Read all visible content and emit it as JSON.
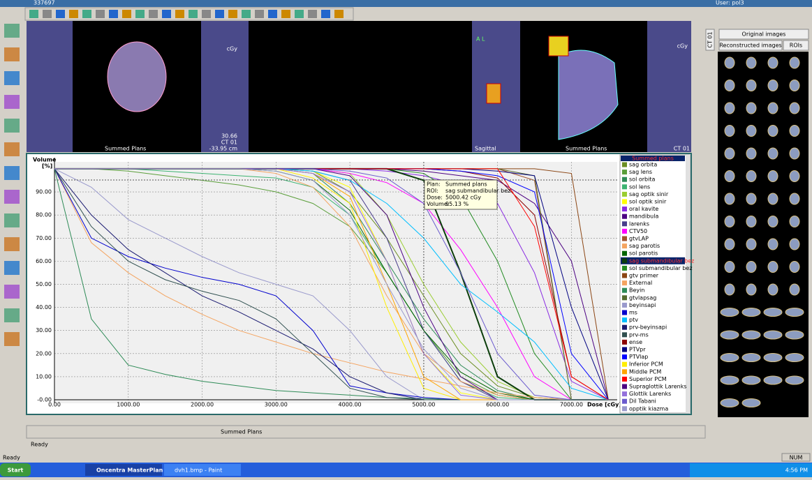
{
  "ui": {
    "top_left": "337697",
    "user": "User: pol3",
    "axial": {
      "footer": "Summed Plans",
      "ct": "CT 01",
      "pos": "-33.95 cm",
      "slice": "30.66",
      "unit": "cGy"
    },
    "sagittal": {
      "name": "Sagittal",
      "footer": "Summed Plans",
      "ct": "CT 01",
      "unit": "cGy",
      "orient": "A L"
    },
    "tabs": {
      "ct": "CT 01",
      "original": "Original images",
      "reconstructed": "Reconstructed images",
      "rois": "ROIs"
    },
    "bottom_plan": "Summed Plans",
    "status1": "Ready",
    "status2": "Ready",
    "num": "NUM",
    "taskbar": {
      "start": "Start",
      "app1": "Oncentra MasterPlan ...",
      "app2": "dvh1.bmp - Paint",
      "clock": "4:56 PM"
    },
    "tooltip": [
      [
        "Plan:",
        "Summed plans"
      ],
      [
        "ROI:",
        "sag submandibular bez"
      ],
      [
        "Dose:",
        "5000.42 cGy"
      ],
      [
        "Volume:",
        "95.13 %"
      ]
    ]
  },
  "chart_data": {
    "type": "line",
    "y_label": "Volume",
    "y_unit": "[%]",
    "x_label": "Dose [cGy]",
    "legend_title": "Summed plans",
    "grid": true,
    "crosshair": {
      "x": 5000.42,
      "y": 95.13
    },
    "xlim": [
      0,
      7620
    ],
    "ylim": [
      -1.5,
      103
    ],
    "xticks": [
      {
        "value": 0,
        "label": "0.00"
      },
      {
        "value": 1000,
        "label": "1000.00"
      },
      {
        "value": 2000,
        "label": "2000.00"
      },
      {
        "value": 3000,
        "label": "3000.00"
      },
      {
        "value": 4000,
        "label": "4000.00"
      },
      {
        "value": 5000,
        "label": "5000.00"
      },
      {
        "value": 6000,
        "label": "6000.00"
      },
      {
        "value": 7000,
        "label": "7000.00"
      }
    ],
    "yticks": [
      {
        "value": 0,
        "label": "-0.00"
      },
      {
        "value": 10,
        "label": "10.00"
      },
      {
        "value": 20,
        "label": "20.00"
      },
      {
        "value": 30,
        "label": "30.00"
      },
      {
        "value": 40,
        "label": "40.00"
      },
      {
        "value": 50,
        "label": "50.00"
      },
      {
        "value": 60,
        "label": "60.00"
      },
      {
        "value": 70,
        "label": "70.00"
      },
      {
        "value": 80,
        "label": "80.00"
      },
      {
        "value": 90,
        "label": "90.00"
      }
    ],
    "x": [
      0,
      500,
      1000,
      1500,
      2000,
      2500,
      3000,
      3500,
      4000,
      4500,
      5000,
      5500,
      6000,
      6500,
      7000,
      7500
    ],
    "series": [
      {
        "name": "sag orbita",
        "color": "#6b8e23",
        "values": [
          100,
          100,
          100,
          100,
          100,
          100,
          100,
          99,
          90,
          70,
          45,
          20,
          6,
          1,
          0,
          0
        ]
      },
      {
        "name": "sag lens",
        "color": "#5a9e3a",
        "values": [
          100,
          100,
          99,
          97,
          95,
          93,
          90,
          85,
          75,
          55,
          30,
          10,
          2,
          0,
          0,
          0
        ]
      },
      {
        "name": "sol orbita",
        "color": "#2e8b57",
        "values": [
          100,
          100,
          100,
          100,
          100,
          100,
          100,
          98,
          85,
          60,
          35,
          15,
          4,
          0,
          0,
          0
        ]
      },
      {
        "name": "sol lens",
        "color": "#3cb371",
        "values": [
          100,
          100,
          100,
          99,
          98,
          97,
          96,
          92,
          80,
          55,
          30,
          8,
          1,
          0,
          0,
          0
        ]
      },
      {
        "name": "sag optik sinir",
        "color": "#9acd32",
        "values": [
          100,
          100,
          100,
          100,
          100,
          100,
          100,
          100,
          98,
          80,
          50,
          25,
          8,
          1,
          0,
          0
        ]
      },
      {
        "name": "sol optik sinir",
        "color": "#ffff00",
        "values": [
          100,
          100,
          100,
          100,
          100,
          100,
          100,
          99,
          92,
          60,
          20,
          3,
          0,
          0,
          0,
          0
        ]
      },
      {
        "name": "oral kavite",
        "color": "#8a2be2",
        "values": [
          100,
          100,
          100,
          100,
          100,
          100,
          100,
          100,
          100,
          99,
          97,
          93,
          85,
          55,
          8,
          0
        ]
      },
      {
        "name": "mandibula",
        "color": "#4b0082",
        "values": [
          100,
          100,
          100,
          100,
          100,
          100,
          100,
          100,
          100,
          100,
          99,
          97,
          95,
          85,
          60,
          0
        ]
      },
      {
        "name": "larenks",
        "color": "#483d8b",
        "values": [
          100,
          100,
          100,
          100,
          100,
          100,
          100,
          99,
          95,
          70,
          30,
          8,
          0,
          0,
          0,
          0
        ]
      },
      {
        "name": "CTV50",
        "color": "#ff00ff",
        "values": [
          100,
          100,
          100,
          100,
          100,
          100,
          100,
          100,
          98,
          94,
          85,
          65,
          40,
          10,
          0,
          0
        ]
      },
      {
        "name": "gtvLAP",
        "color": "#a0522d",
        "values": [
          100,
          100,
          100,
          100,
          100,
          100,
          100,
          100,
          100,
          100,
          100,
          100,
          100,
          95,
          0,
          0
        ]
      },
      {
        "name": "sag parotis",
        "color": "#f4a460",
        "values": [
          100,
          100,
          100,
          100,
          100,
          100,
          98,
          92,
          75,
          45,
          20,
          8,
          2,
          0,
          0,
          0
        ]
      },
      {
        "name": "sol parotis",
        "color": "#006400",
        "values": [
          100,
          100,
          100,
          100,
          100,
          100,
          99,
          95,
          82,
          55,
          30,
          12,
          3,
          0,
          0,
          0
        ]
      },
      {
        "name": "sag submandibular bez",
        "color": "#0b3d0b",
        "selected": true,
        "values": [
          100,
          100,
          100,
          100,
          100,
          100,
          100,
          100,
          100,
          100,
          95,
          55,
          10,
          0,
          0,
          0
        ]
      },
      {
        "name": "sol submandibular bez",
        "color": "#228b22",
        "values": [
          100,
          100,
          100,
          100,
          100,
          100,
          100,
          100,
          100,
          100,
          98,
          88,
          60,
          20,
          0,
          0
        ]
      },
      {
        "name": "gtv primer",
        "color": "#8b4513",
        "values": [
          100,
          100,
          100,
          100,
          100,
          100,
          100,
          100,
          100,
          100,
          100,
          100,
          100,
          100,
          98,
          0
        ]
      },
      {
        "name": "External",
        "color": "#f4a460",
        "values": [
          100,
          68,
          55,
          45,
          37,
          30,
          25,
          20,
          16,
          12,
          9,
          6,
          3,
          1,
          0,
          0
        ]
      },
      {
        "name": "Beyin",
        "color": "#2e8b57",
        "values": [
          100,
          35,
          15,
          11,
          8,
          6,
          4,
          3,
          2,
          1,
          0.5,
          0,
          0,
          0,
          0,
          0
        ]
      },
      {
        "name": "gtvlapsag",
        "color": "#556b2f",
        "values": [
          100,
          100,
          100,
          100,
          100,
          100,
          100,
          100,
          100,
          100,
          100,
          100,
          100,
          97,
          0,
          0
        ]
      },
      {
        "name": "beyinsapi",
        "color": "#9999cc",
        "values": [
          100,
          92,
          78,
          70,
          62,
          55,
          50,
          45,
          30,
          10,
          0,
          0,
          0,
          0,
          0,
          0
        ]
      },
      {
        "name": "ms",
        "color": "#0000cd",
        "values": [
          100,
          70,
          62,
          57,
          53,
          50,
          45,
          30,
          6,
          3,
          1,
          0,
          0,
          0,
          0,
          0
        ]
      },
      {
        "name": "ptv",
        "color": "#00bfff",
        "values": [
          100,
          100,
          100,
          100,
          100,
          100,
          100,
          99,
          95,
          85,
          70,
          50,
          38,
          25,
          5,
          0
        ]
      },
      {
        "name": "prv-beyinsapi",
        "color": "#191970",
        "values": [
          100,
          80,
          65,
          55,
          45,
          38,
          30,
          22,
          10,
          3,
          0,
          0,
          0,
          0,
          0,
          0
        ]
      },
      {
        "name": "prv-ms",
        "color": "#2f4f4f",
        "values": [
          100,
          75,
          60,
          52,
          47,
          43,
          35,
          20,
          5,
          1,
          0,
          0,
          0,
          0,
          0,
          0
        ]
      },
      {
        "name": "ense",
        "color": "#8b0000",
        "values": [
          100,
          100,
          100,
          100,
          100,
          100,
          100,
          100,
          100,
          100,
          100,
          99,
          96,
          80,
          10,
          0
        ]
      },
      {
        "name": "PTVpr",
        "color": "#000080",
        "values": [
          100,
          100,
          100,
          100,
          100,
          100,
          100,
          100,
          100,
          100,
          100,
          100,
          99,
          97,
          40,
          0
        ]
      },
      {
        "name": "PTVlap",
        "color": "#0000ff",
        "values": [
          100,
          100,
          100,
          100,
          100,
          100,
          100,
          100,
          100,
          100,
          100,
          99,
          97,
          90,
          20,
          0
        ]
      },
      {
        "name": "Inferior PCM",
        "color": "#ffee00",
        "values": [
          100,
          100,
          100,
          100,
          100,
          100,
          100,
          96,
          85,
          40,
          5,
          0,
          0,
          0,
          0,
          0
        ]
      },
      {
        "name": "Middle PCM",
        "color": "#ffa500",
        "values": [
          100,
          100,
          100,
          100,
          100,
          100,
          100,
          98,
          88,
          50,
          10,
          0,
          0,
          0,
          0,
          0
        ]
      },
      {
        "name": "Superior PCM",
        "color": "#ff0000",
        "values": [
          100,
          100,
          100,
          100,
          100,
          100,
          100,
          100,
          100,
          100,
          100,
          100,
          100,
          75,
          10,
          0
        ]
      },
      {
        "name": "Supraglottik Larenks",
        "color": "#4b0082",
        "values": [
          100,
          100,
          100,
          100,
          100,
          100,
          100,
          100,
          97,
          80,
          40,
          10,
          0,
          0,
          0,
          0
        ]
      },
      {
        "name": "Glottik Larenks",
        "color": "#9370db",
        "values": [
          100,
          100,
          100,
          100,
          100,
          100,
          100,
          98,
          90,
          60,
          20,
          2,
          0,
          0,
          0,
          0
        ]
      },
      {
        "name": "Dil Tabani",
        "color": "#6a5acd",
        "values": [
          100,
          100,
          100,
          100,
          100,
          100,
          100,
          100,
          99,
          96,
          85,
          55,
          20,
          2,
          0,
          0
        ]
      },
      {
        "name": "opptik kiazma",
        "color": "#9999cc",
        "values": [
          100,
          100,
          100,
          100,
          100,
          100,
          99,
          95,
          80,
          50,
          22,
          5,
          0,
          0,
          0,
          0
        ]
      }
    ]
  }
}
